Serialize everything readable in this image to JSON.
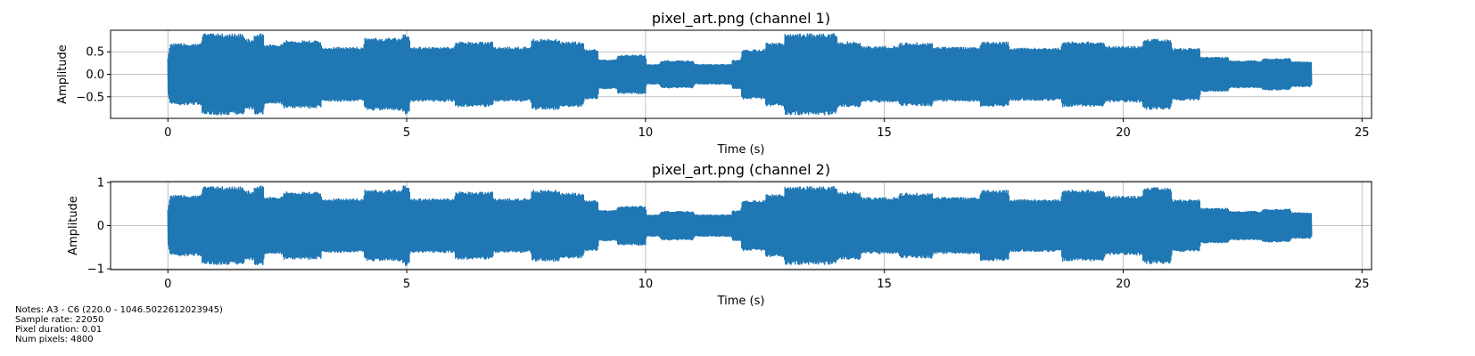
{
  "figure": {
    "notes": [
      "Notes: A3 - C6 (220.0 - 1046.5022612023945)",
      "Sample rate: 22050",
      "Pixel duration: 0.01",
      "Num pixels: 4800"
    ]
  },
  "chart_data": [
    {
      "type": "line",
      "title": "pixel_art.png (channel 1)",
      "xlabel": "Time (s)",
      "ylabel": "Amplitude",
      "xlim": [
        -1.2,
        25.2
      ],
      "ylim": [
        -0.98,
        0.98
      ],
      "xticks": [
        0,
        5,
        10,
        15,
        20,
        25
      ],
      "xtick_labels": [
        "0",
        "5",
        "10",
        "15",
        "20",
        "25"
      ],
      "yticks": [
        0.5,
        0.0,
        -0.5
      ],
      "ytick_labels": [
        "0.5",
        "0.0",
        "−0.5"
      ],
      "grid": true,
      "color": "#1f77b4",
      "envelope": {
        "t": [
          0.0,
          0.05,
          0.7,
          0.72,
          1.6,
          1.62,
          1.8,
          1.82,
          2.0,
          2.02,
          2.4,
          2.42,
          3.2,
          3.22,
          4.1,
          4.12,
          4.9,
          4.92,
          5.05,
          5.07,
          6.0,
          6.02,
          6.8,
          6.82,
          7.6,
          7.62,
          8.2,
          8.22,
          8.7,
          8.72,
          9.0,
          9.02,
          9.4,
          9.42,
          10.0,
          10.02,
          10.3,
          10.32,
          11.0,
          11.02,
          11.8,
          11.82,
          12.0,
          12.02,
          12.5,
          12.52,
          12.9,
          12.92,
          14.0,
          14.02,
          14.5,
          14.52,
          15.3,
          15.32,
          16.0,
          16.02,
          17.0,
          17.02,
          17.6,
          17.62,
          18.7,
          18.72,
          19.6,
          19.62,
          20.4,
          20.42,
          21.0,
          21.02,
          21.6,
          21.62,
          22.2,
          22.22,
          22.9,
          22.92,
          23.5,
          23.52,
          23.9,
          23.95
        ],
        "amp": [
          0.4,
          0.68,
          0.68,
          0.9,
          0.9,
          0.78,
          0.78,
          0.9,
          0.9,
          0.66,
          0.66,
          0.75,
          0.75,
          0.6,
          0.6,
          0.8,
          0.8,
          0.88,
          0.88,
          0.6,
          0.6,
          0.72,
          0.72,
          0.6,
          0.6,
          0.78,
          0.78,
          0.72,
          0.72,
          0.55,
          0.55,
          0.32,
          0.32,
          0.43,
          0.43,
          0.22,
          0.22,
          0.3,
          0.3,
          0.22,
          0.22,
          0.32,
          0.32,
          0.55,
          0.55,
          0.7,
          0.7,
          0.9,
          0.9,
          0.72,
          0.72,
          0.62,
          0.62,
          0.7,
          0.7,
          0.6,
          0.6,
          0.72,
          0.72,
          0.58,
          0.58,
          0.72,
          0.72,
          0.62,
          0.62,
          0.78,
          0.78,
          0.58,
          0.58,
          0.38,
          0.38,
          0.3,
          0.3,
          0.35,
          0.35,
          0.28,
          0.28,
          0.25
        ]
      }
    },
    {
      "type": "line",
      "title": "pixel_art.png (channel 2)",
      "xlabel": "Time (s)",
      "ylabel": "Amplitude",
      "xlim": [
        -1.2,
        25.2
      ],
      "ylim": [
        -1.02,
        1.02
      ],
      "xticks": [
        0,
        5,
        10,
        15,
        20,
        25
      ],
      "xtick_labels": [
        "0",
        "5",
        "10",
        "15",
        "20",
        "25"
      ],
      "yticks": [
        1,
        0,
        -1
      ],
      "ytick_labels": [
        "1",
        "0",
        "−1"
      ],
      "grid": true,
      "color": "#1f77b4",
      "envelope": {
        "t": [
          0.0,
          0.05,
          0.7,
          0.72,
          1.6,
          1.62,
          1.8,
          1.82,
          2.0,
          2.02,
          2.4,
          2.42,
          3.2,
          3.22,
          4.1,
          4.12,
          4.9,
          4.92,
          5.05,
          5.07,
          6.0,
          6.02,
          6.8,
          6.82,
          7.6,
          7.62,
          8.2,
          8.22,
          8.7,
          8.72,
          9.0,
          9.02,
          9.4,
          9.42,
          10.0,
          10.02,
          10.3,
          10.32,
          11.0,
          11.02,
          11.8,
          11.82,
          12.0,
          12.02,
          12.5,
          12.52,
          12.9,
          12.92,
          14.0,
          14.02,
          14.5,
          14.52,
          15.3,
          15.32,
          16.0,
          16.02,
          17.0,
          17.02,
          17.6,
          17.62,
          18.7,
          18.72,
          19.6,
          19.62,
          20.4,
          20.42,
          21.0,
          21.02,
          21.6,
          21.62,
          22.2,
          22.22,
          22.9,
          22.92,
          23.5,
          23.52,
          23.9,
          23.95
        ],
        "amp": [
          0.4,
          0.7,
          0.7,
          0.9,
          0.9,
          0.8,
          0.8,
          0.92,
          0.92,
          0.66,
          0.66,
          0.78,
          0.78,
          0.62,
          0.62,
          0.82,
          0.82,
          0.92,
          0.92,
          0.62,
          0.62,
          0.78,
          0.78,
          0.62,
          0.62,
          0.82,
          0.82,
          0.75,
          0.75,
          0.58,
          0.58,
          0.35,
          0.35,
          0.45,
          0.45,
          0.25,
          0.25,
          0.33,
          0.33,
          0.25,
          0.25,
          0.35,
          0.35,
          0.58,
          0.58,
          0.72,
          0.72,
          0.9,
          0.9,
          0.78,
          0.78,
          0.65,
          0.65,
          0.75,
          0.75,
          0.65,
          0.65,
          0.82,
          0.82,
          0.6,
          0.6,
          0.82,
          0.82,
          0.68,
          0.68,
          0.88,
          0.88,
          0.6,
          0.6,
          0.4,
          0.4,
          0.33,
          0.33,
          0.38,
          0.38,
          0.3,
          0.3,
          0.27
        ]
      }
    }
  ]
}
